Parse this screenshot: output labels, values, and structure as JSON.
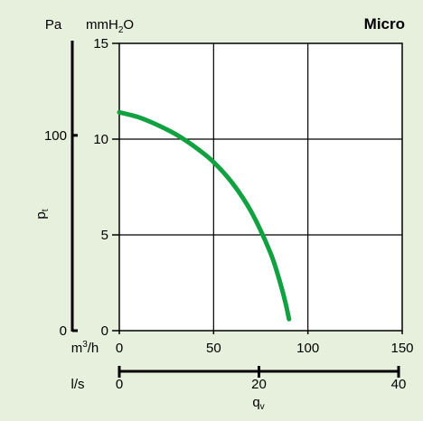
{
  "chart_data": {
    "type": "line",
    "title": "Micro",
    "ylabel": "p",
    "ylabel_subscript": "t",
    "xlabel": "q",
    "xlabel_subscript": "v",
    "y_unit_mm_base": "mmH",
    "y_unit_mm_sub": "2",
    "y_unit_mm_tail": "O",
    "y_unit_pa": "Pa",
    "x_unit_m3h_base": "m",
    "x_unit_m3h_sup": "3",
    "x_unit_m3h_tail": "/h",
    "x_unit_ls": "l/s",
    "y_mmH2O": {
      "ylim": [
        0,
        15
      ],
      "ticks": [
        "0",
        "5",
        "10",
        "15"
      ],
      "tick_values": [
        0,
        5,
        10,
        15
      ]
    },
    "y_Pa": {
      "ylim": [
        0,
        147.1
      ],
      "ticks": [
        "0",
        "100"
      ],
      "tick_values": [
        0,
        100
      ]
    },
    "x_m3h": {
      "xlim": [
        0,
        150
      ],
      "ticks": [
        "0",
        "50",
        "100",
        "150"
      ],
      "tick_values": [
        0,
        50,
        100,
        150
      ]
    },
    "x_ls": {
      "xlim": [
        0,
        41.67
      ],
      "ticks": [
        "0",
        "20",
        "40"
      ],
      "tick_values": [
        0,
        20,
        40
      ]
    },
    "grid": true,
    "series": [
      {
        "color": "#12a140",
        "x": [
          0,
          10,
          20,
          30,
          40,
          50,
          60,
          70,
          80,
          85,
          88,
          90
        ],
        "y": [
          11.4,
          11.15,
          10.75,
          10.25,
          9.6,
          8.8,
          7.7,
          6.2,
          4.1,
          2.6,
          1.5,
          0.6
        ]
      }
    ]
  }
}
